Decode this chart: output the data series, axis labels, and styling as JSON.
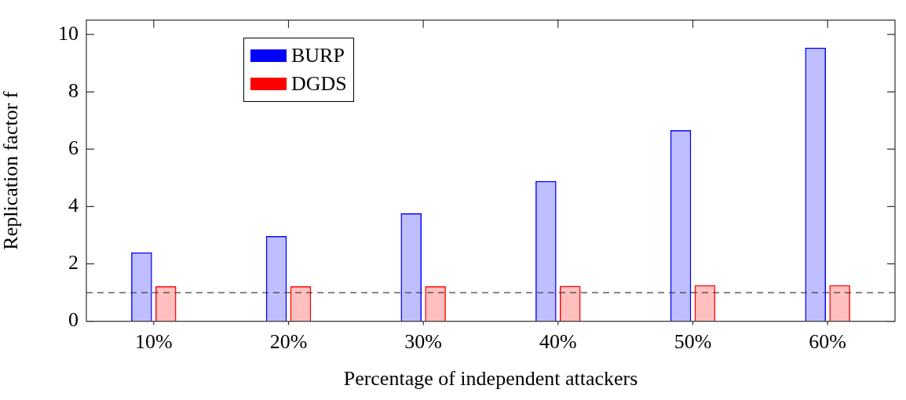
{
  "chart_data": {
    "type": "bar",
    "xlabel": "Percentage of independent attackers",
    "ylabel": "Replication factor f",
    "categories": [
      "10%",
      "20%",
      "30%",
      "40%",
      "50%",
      "60%"
    ],
    "series": [
      {
        "name": "BURP",
        "color": "#0000ff",
        "values": [
          2.4,
          2.97,
          3.76,
          4.89,
          6.66,
          9.54
        ]
      },
      {
        "name": "DGDS",
        "color": "#ff0000",
        "values": [
          1.22,
          1.22,
          1.22,
          1.23,
          1.26,
          1.26
        ]
      }
    ],
    "ylim": [
      0,
      10.5
    ],
    "yticks": [
      0,
      2,
      4,
      6,
      8,
      10
    ],
    "grid": false,
    "legend": "top left",
    "ref_lines": [
      {
        "axis": "y",
        "value": 1,
        "color": "#404040",
        "line_style": "dashed"
      }
    ]
  }
}
